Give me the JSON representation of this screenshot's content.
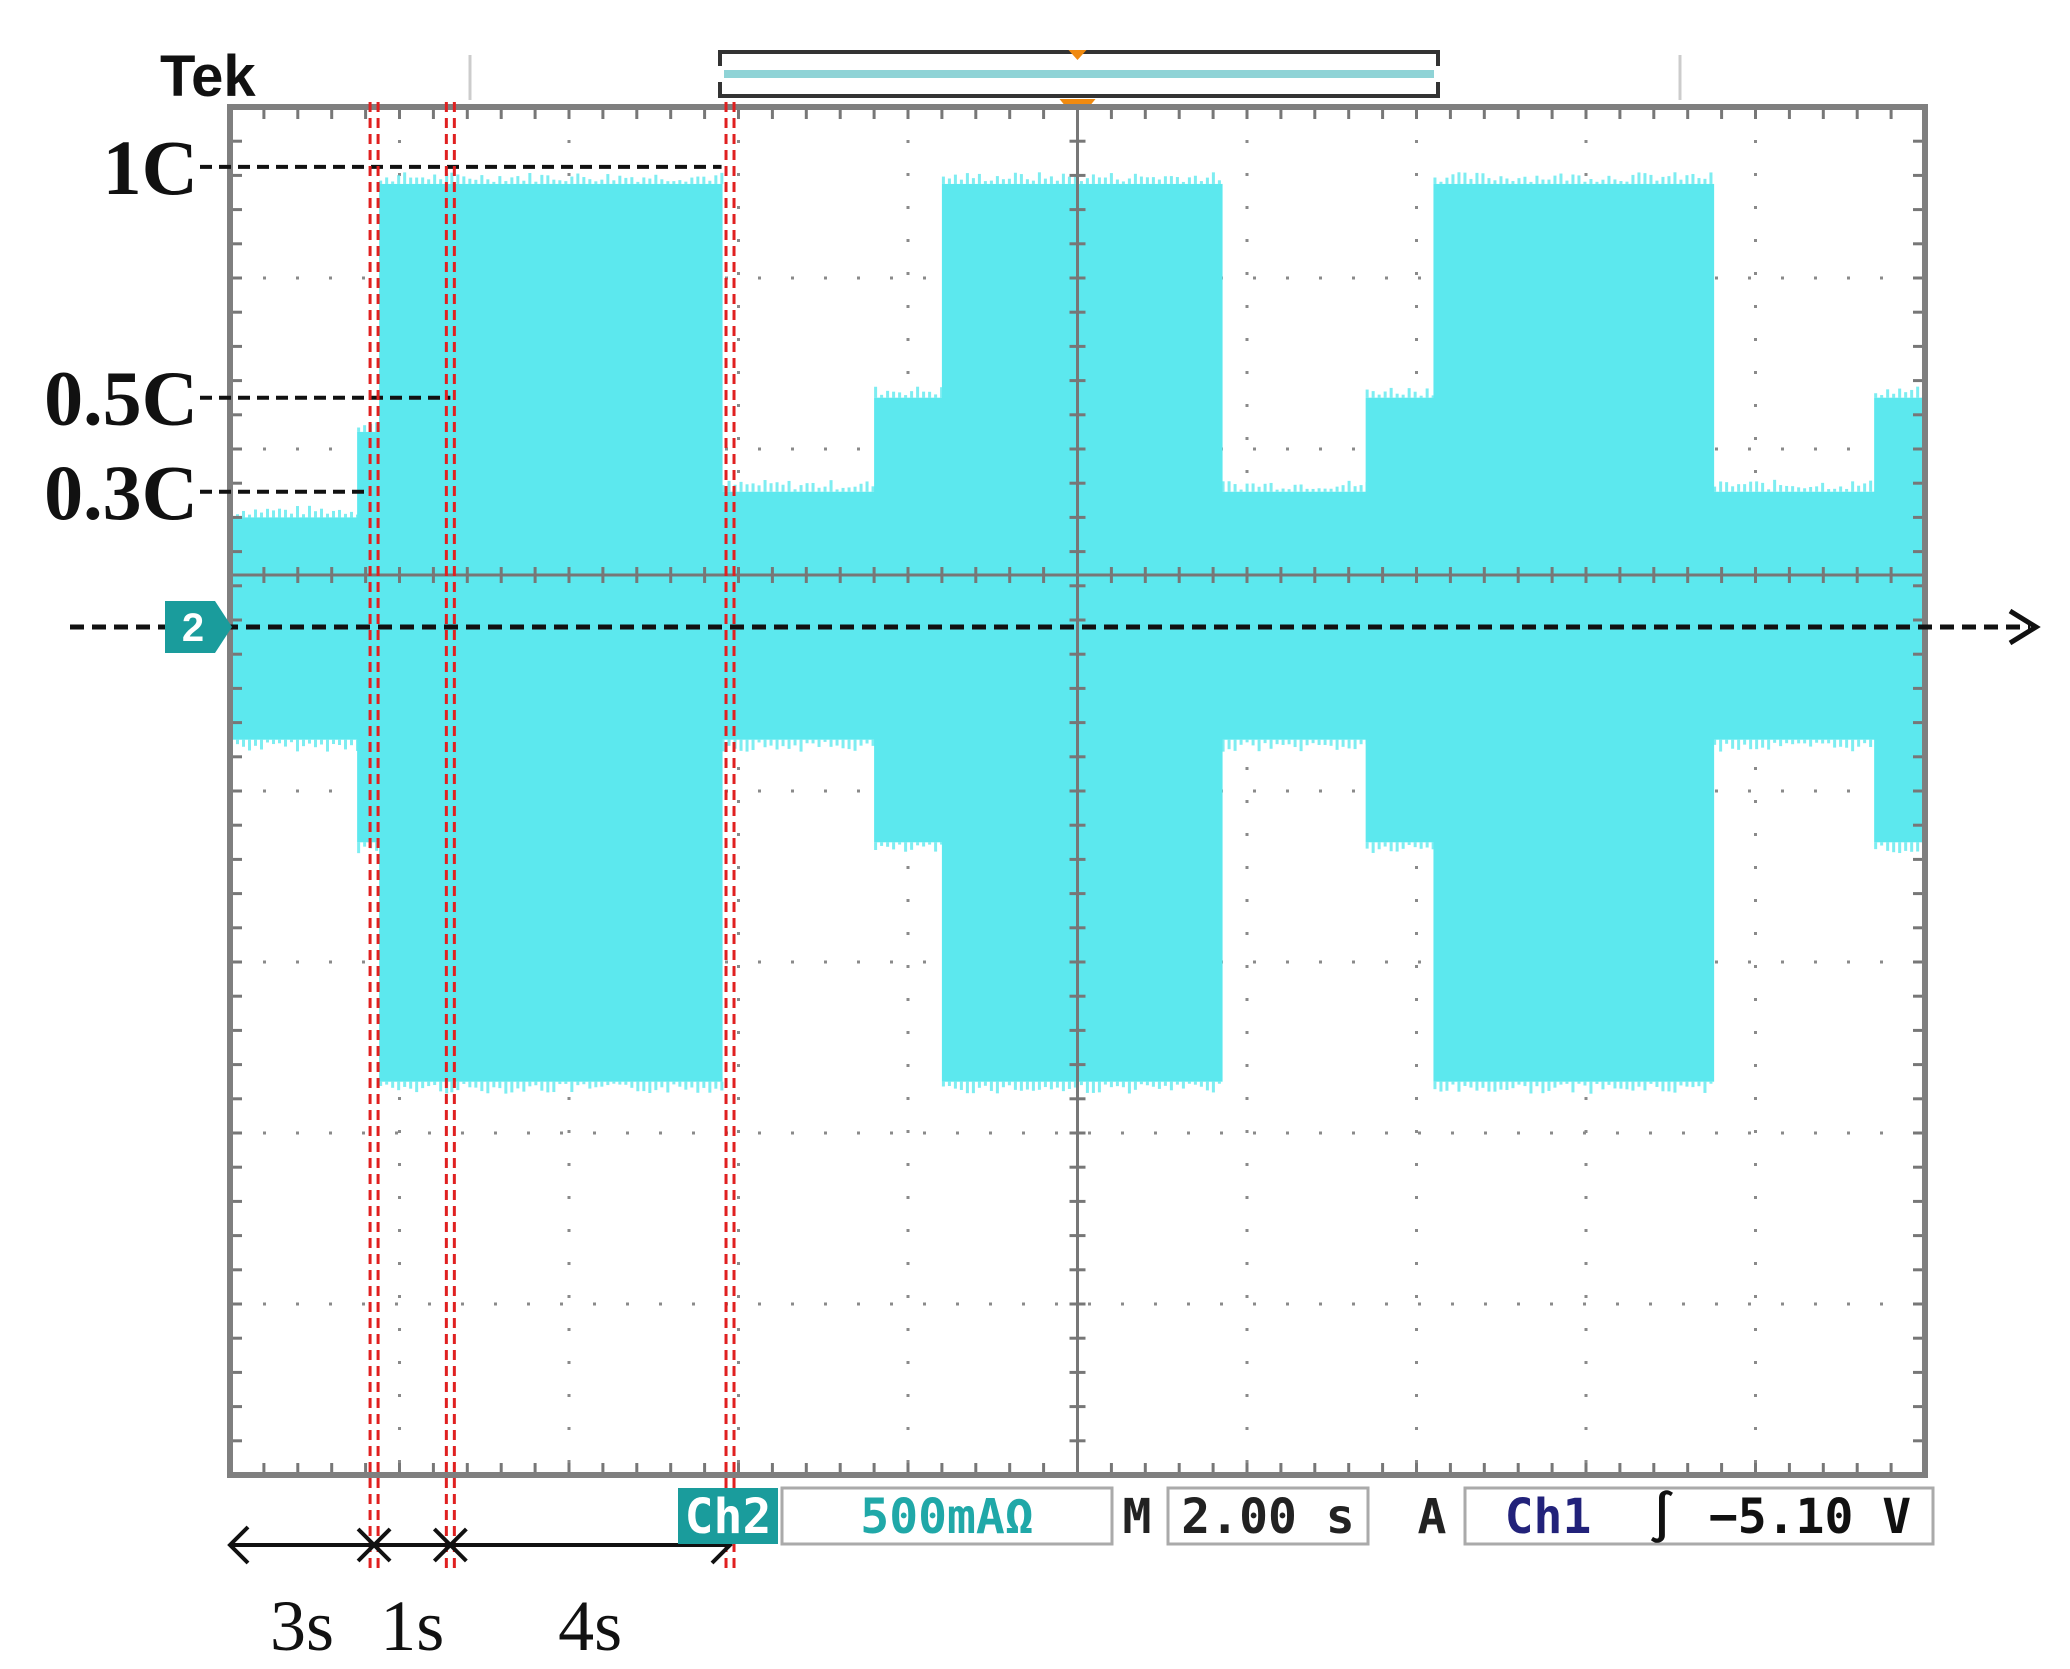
{
  "brand": "Tek",
  "channel_marker": "2",
  "status_bar": {
    "channel": "Ch2",
    "scale": "500mAΩ",
    "time_prefix": "M",
    "timebase": "2.00 s",
    "trigger_prefix": "A",
    "trigger_source": "Ch1",
    "trigger_slope": "∫",
    "trigger_level": "−5.10 V"
  },
  "colors": {
    "trace": "#5ce8ee",
    "grid": "#8a8a8a",
    "frame": "#7f7f7f",
    "marker": "#1a9c9c",
    "annotation": "#e02020",
    "trigger": "#f08a10",
    "status_text": "#20a8a8",
    "trigger_text": "#22227a"
  },
  "chart_data": {
    "type": "area",
    "title": "",
    "xlabel": "",
    "ylabel": "",
    "x_unit_per_div": "2.00 s",
    "y_unit_per_div": "500mA",
    "xlim": [
      0,
      10
    ],
    "ylim": [
      -5,
      3
    ],
    "grid": true,
    "segments": [
      {
        "x0": 0.0,
        "x1": 0.75,
        "top": 0.6,
        "bottom": -0.7
      },
      {
        "x0": 0.75,
        "x1": 0.88,
        "top": 1.1,
        "bottom": -1.3
      },
      {
        "x0": 0.88,
        "x1": 1.3,
        "top": 2.55,
        "bottom": -2.7
      },
      {
        "x0": 1.3,
        "x1": 2.9,
        "top": 2.55,
        "bottom": -2.7
      },
      {
        "x0": 2.9,
        "x1": 3.8,
        "top": 0.75,
        "bottom": -0.7
      },
      {
        "x0": 3.8,
        "x1": 4.2,
        "top": 1.3,
        "bottom": -1.3
      },
      {
        "x0": 4.2,
        "x1": 5.85,
        "top": 2.55,
        "bottom": -2.7
      },
      {
        "x0": 5.85,
        "x1": 6.7,
        "top": 0.75,
        "bottom": -0.7
      },
      {
        "x0": 6.7,
        "x1": 7.1,
        "top": 1.3,
        "bottom": -1.3
      },
      {
        "x0": 7.1,
        "x1": 8.75,
        "top": 2.55,
        "bottom": -2.7
      },
      {
        "x0": 8.75,
        "x1": 9.7,
        "top": 0.75,
        "bottom": -0.7
      },
      {
        "x0": 9.7,
        "x1": 10.0,
        "top": 1.3,
        "bottom": -1.3
      }
    ],
    "levels": [
      {
        "label": "1C",
        "value": 2.65,
        "x_end": 2.9
      },
      {
        "label": "0.5C",
        "value": 1.3,
        "x_end": 1.3
      },
      {
        "label": "0.3C",
        "value": 0.75,
        "x_end": 0.8
      }
    ],
    "annotation_lines_x": [
      0.85,
      1.3,
      2.95
    ],
    "durations": [
      {
        "label": "3s",
        "x0": 0.0,
        "x1": 0.85
      },
      {
        "label": "1s",
        "x0": 0.85,
        "x1": 1.3
      },
      {
        "label": "4s",
        "x0": 1.3,
        "x1": 2.95
      }
    ]
  }
}
